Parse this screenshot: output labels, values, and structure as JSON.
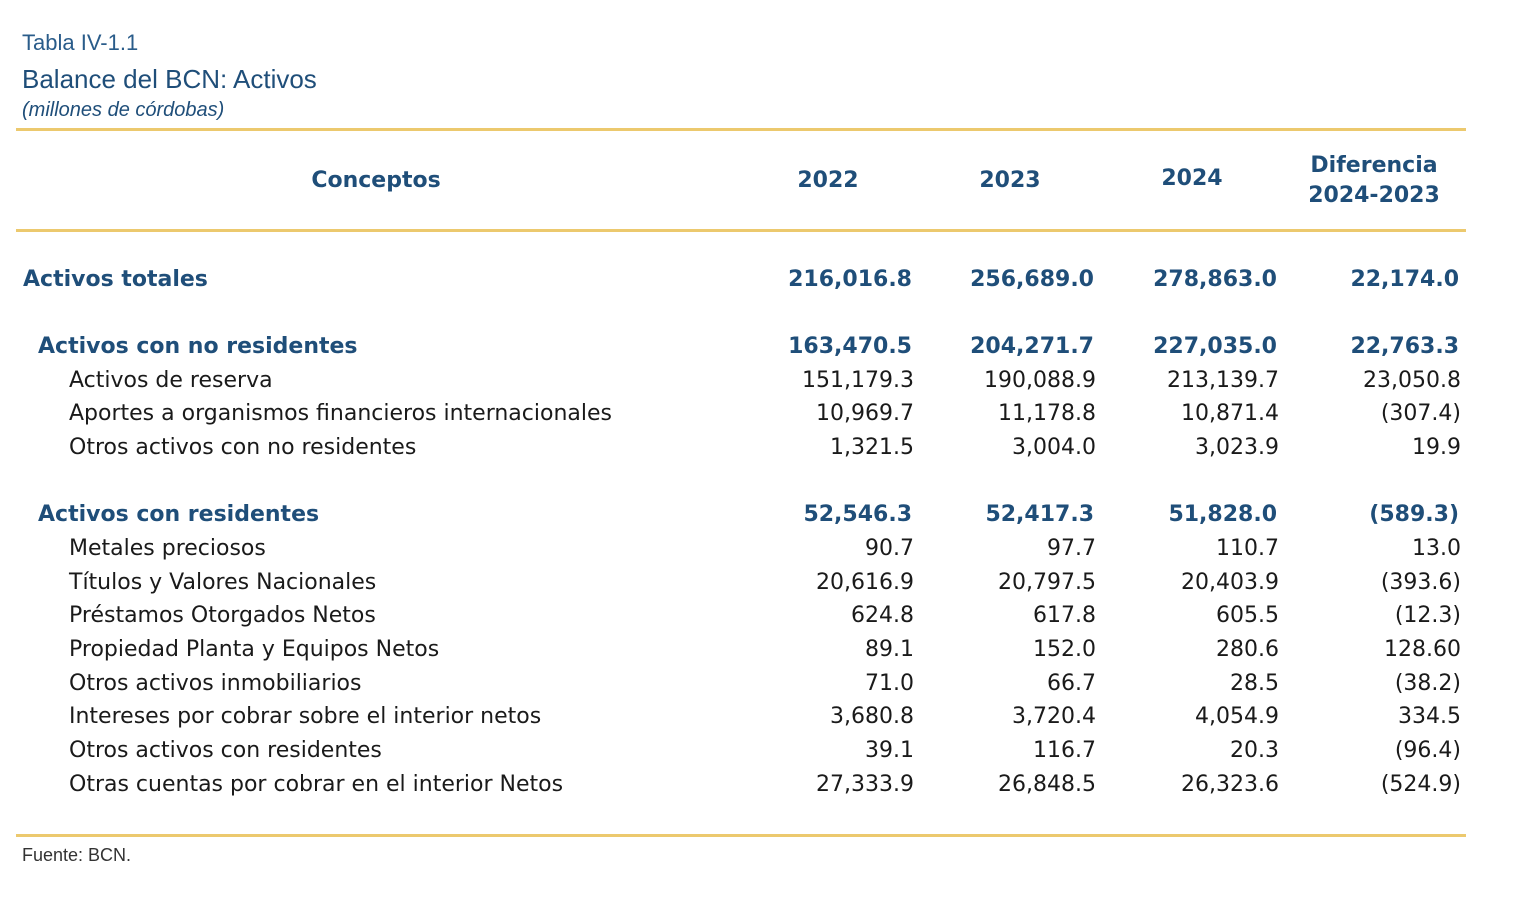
{
  "header": {
    "table_label": "Tabla IV-1.1",
    "title": "Balance del BCN: Activos",
    "units": "(millones de córdobas)"
  },
  "columns": {
    "concepts": "Conceptos",
    "y2022": "2022",
    "y2023": "2023",
    "y2024": "2024",
    "diff_line1": "Diferencia",
    "diff_line2": "2024-2023"
  },
  "rows": [
    {
      "kind": "total",
      "concept": "Activos totales",
      "y2022": "216,016.8",
      "y2023": "256,689.0",
      "y2024": "278,863.0",
      "diff": "22,174.0"
    },
    {
      "kind": "group",
      "concept": "Activos con  no residentes",
      "y2022": "163,470.5",
      "y2023": "204,271.7",
      "y2024": "227,035.0",
      "diff": "22,763.3"
    },
    {
      "kind": "item",
      "concept": "Activos de reserva",
      "y2022": "151,179.3",
      "y2023": "190,088.9",
      "y2024": "213,139.7",
      "diff": "23,050.8"
    },
    {
      "kind": "item",
      "concept": "Aportes a organismos financieros internacionales",
      "y2022": "10,969.7",
      "y2023": "11,178.8",
      "y2024": "10,871.4",
      "diff": "(307.4)"
    },
    {
      "kind": "item",
      "concept": "Otros activos con no residentes",
      "y2022": "1,321.5",
      "y2023": "3,004.0",
      "y2024": "3,023.9",
      "diff": "19.9"
    },
    {
      "kind": "group",
      "concept": "Activos con residentes",
      "y2022": "52,546.3",
      "y2023": "52,417.3",
      "y2024": "51,828.0",
      "diff": "(589.3)"
    },
    {
      "kind": "item",
      "concept": "Metales preciosos",
      "y2022": "90.7",
      "y2023": "97.7",
      "y2024": "110.7",
      "diff": "13.0"
    },
    {
      "kind": "item",
      "concept": "Títulos y Valores Nacionales",
      "y2022": "20,616.9",
      "y2023": "20,797.5",
      "y2024": "20,403.9",
      "diff": "(393.6)"
    },
    {
      "kind": "item",
      "concept": "Préstamos Otorgados Netos",
      "y2022": "624.8",
      "y2023": "617.8",
      "y2024": "605.5",
      "diff": "(12.3)"
    },
    {
      "kind": "item",
      "concept": "Propiedad Planta y Equipos Netos",
      "y2022": "89.1",
      "y2023": "152.0",
      "y2024": "280.6",
      "diff": "128.60"
    },
    {
      "kind": "item",
      "concept": "Otros activos inmobiliarios",
      "y2022": "71.0",
      "y2023": "66.7",
      "y2024": "28.5",
      "diff": "(38.2)"
    },
    {
      "kind": "item",
      "concept": "Intereses por cobrar sobre el interior netos",
      "y2022": "3,680.8",
      "y2023": "3,720.4",
      "y2024": "4,054.9",
      "diff": "334.5"
    },
    {
      "kind": "item",
      "concept": "Otros activos con residentes",
      "y2022": "39.1",
      "y2023": "116.7",
      "y2024": "20.3",
      "diff": "(96.4)"
    },
    {
      "kind": "item",
      "concept": "Otras cuentas por cobrar en el interior Netos",
      "y2022": "27,333.9",
      "y2023": "26,848.5",
      "y2024": "26,323.6",
      "diff": "(524.9)"
    }
  ],
  "footer": {
    "source": "Fuente: BCN."
  },
  "colors": {
    "accent_blue": "#1f4e79",
    "rule_gold": "#ecc96e"
  }
}
